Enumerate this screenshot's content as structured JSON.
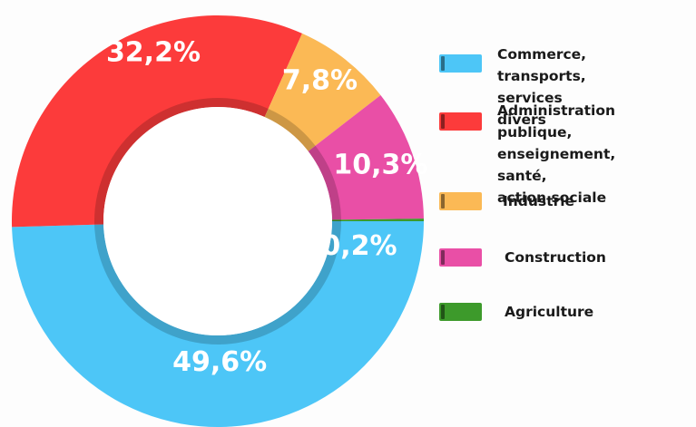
{
  "chart_data": {
    "type": "pie",
    "variant": "donut",
    "categories": [
      "Commerce, transports,\nservices divers",
      "Administration publique,\nenseignement, santé,\naction sociale",
      "Industrie",
      "Construction",
      "Agriculture"
    ],
    "values": [
      49.6,
      32.2,
      7.8,
      10.3,
      0.2
    ],
    "data_labels": [
      "49,6%",
      "32,2%",
      "7,8%",
      "10,3%",
      "0,2%"
    ],
    "colors": [
      "#4dc6f7",
      "#fc3b3b",
      "#fbb955",
      "#e94fa6",
      "#3d9a2b"
    ],
    "legend_position": "right"
  }
}
